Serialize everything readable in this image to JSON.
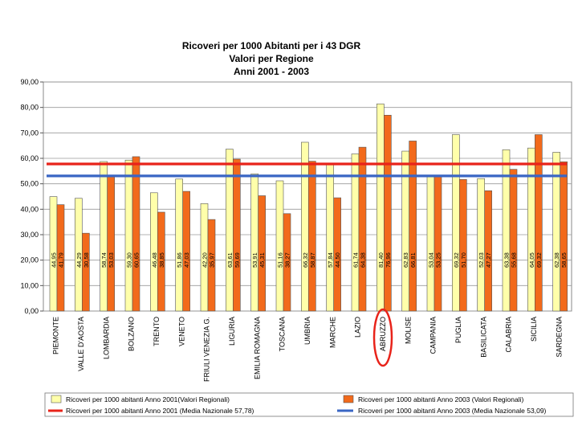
{
  "chart_data": {
    "type": "bar",
    "title": [
      "Ricoveri per 1000 Abitanti per i 43 DGR",
      "Valori per Regione",
      "Anni 2001 - 2003"
    ],
    "categories": [
      "PIEMONTE",
      "VALLE D'AOSTA",
      "LOMBARDIA",
      "BOLZANO",
      "TRENTO",
      "VENETO",
      "FRIULI VENEZIA G.",
      "LIGURIA",
      "EMILIA ROMAGNA",
      "TOSCANA",
      "UMBRIA",
      "MARCHE",
      "LAZIO",
      "ABRUZZO",
      "MOLISE",
      "CAMPANIA",
      "PUGLIA",
      "BASILICATA",
      "CALABRIA",
      "SICILIA",
      "SARDEGNA"
    ],
    "series": [
      {
        "name": "Ricoveri per 1000 abitanti Anno 2001(Valori Regionali)",
        "color": "#ffffaa",
        "values": [
          44.95,
          44.29,
          58.74,
          59.3,
          46.48,
          51.86,
          42.2,
          63.61,
          53.91,
          51.16,
          66.32,
          57.84,
          61.74,
          81.4,
          62.83,
          53.04,
          69.32,
          52.03,
          63.38,
          64.05,
          62.38
        ],
        "labels": [
          "44,95",
          "44,29",
          "58,74",
          "59,30",
          "46,48",
          "51,86",
          "42,20",
          "63,61",
          "53,91",
          "51,16",
          "66,32",
          "57,84",
          "61,74",
          "81,40",
          "62,83",
          "53,04",
          "69,32",
          "52,03",
          "63,38",
          "64,05",
          "62,38"
        ]
      },
      {
        "name": "Ricoveri per 1000 abitanti Anno 2003 (Valori Regionali)",
        "color": "#f26a1b",
        "values": [
          41.79,
          30.58,
          53.03,
          60.65,
          38.85,
          47.03,
          35.97,
          59.69,
          45.31,
          38.27,
          58.87,
          44.5,
          64.38,
          76.96,
          66.81,
          53.25,
          51.7,
          47.27,
          55.68,
          69.32,
          58.65
        ],
        "labels": [
          "41,79",
          "30,58",
          "53,03",
          "60,65",
          "38,85",
          "47,03",
          "35,97",
          "59,69",
          "45,31",
          "38,27",
          "58,87",
          "44,50",
          "64,38",
          "76,96",
          "66,81",
          "53,25",
          "51,70",
          "47,27",
          "55,68",
          "69,32",
          "58,65"
        ]
      }
    ],
    "reference_lines": [
      {
        "name": "Ricoveri per 1000 abitanti Anno 2001 (Media Nazionale 57,78)",
        "value": 57.78,
        "color": "#e8231a"
      },
      {
        "name": "Ricoveri per 1000 abitanti Anno 2003 (Media Nazionale 53,09)",
        "value": 53.09,
        "color": "#3a66c4"
      }
    ],
    "yticks": [
      "0,00",
      "10,00",
      "20,00",
      "30,00",
      "40,00",
      "50,00",
      "60,00",
      "70,00",
      "80,00",
      "90,00"
    ],
    "ylim": [
      0,
      90
    ],
    "grid": true,
    "legend_position": "bottom",
    "highlight": {
      "category": "ABRUZZO",
      "shape": "ellipse",
      "color": "#e8231a"
    },
    "xlabel": "",
    "ylabel": ""
  }
}
